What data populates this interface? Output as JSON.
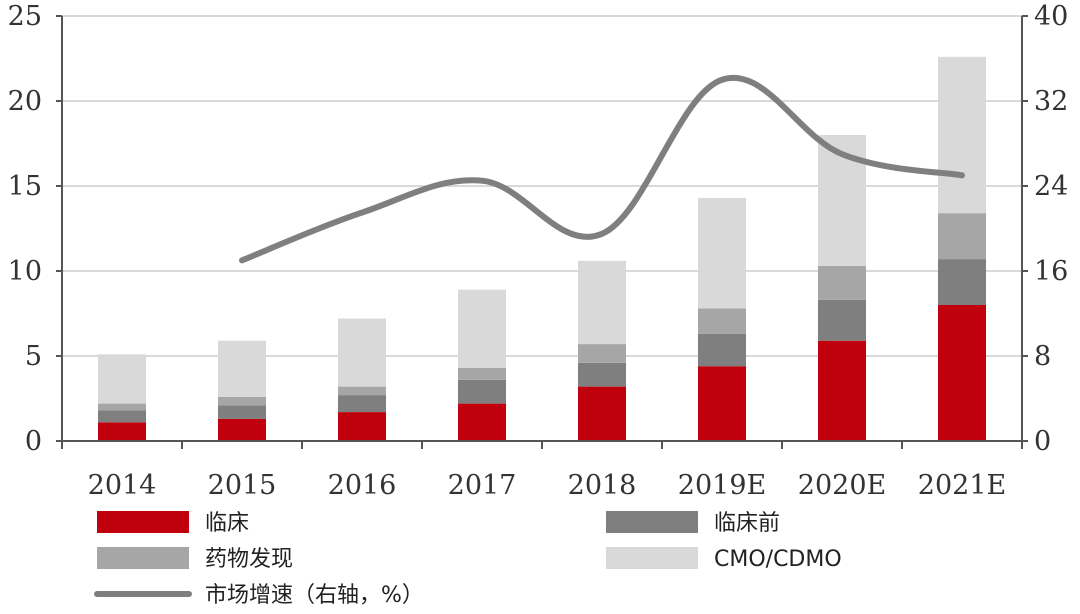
{
  "chart_data": {
    "type": "bar",
    "stacked": true,
    "categories": [
      "2014",
      "2015",
      "2016",
      "2017",
      "2018",
      "2019E",
      "2020E",
      "2021E"
    ],
    "series": [
      {
        "name": "临床",
        "type": "bar",
        "color": "#c0000c",
        "values": [
          1.1,
          1.3,
          1.7,
          2.2,
          3.2,
          4.4,
          5.9,
          8.0
        ]
      },
      {
        "name": "临床前",
        "type": "bar",
        "color": "#7f7f7f",
        "values": [
          0.7,
          0.8,
          1.0,
          1.4,
          1.4,
          1.9,
          2.4,
          2.7
        ]
      },
      {
        "name": "药物发现",
        "type": "bar",
        "color": "#a6a6a6",
        "values": [
          0.4,
          0.5,
          0.5,
          0.7,
          1.1,
          1.5,
          2.0,
          2.7
        ]
      },
      {
        "name": "CMO/CDMO",
        "type": "bar",
        "color": "#d9d9d9",
        "values": [
          2.9,
          3.3,
          4.0,
          4.6,
          4.9,
          6.5,
          7.7,
          9.2
        ]
      },
      {
        "name": "市场增速（右轴，%）",
        "type": "line",
        "axis": "right",
        "color": "#7f7f7f",
        "values": [
          null,
          17,
          21.5,
          24.5,
          19.5,
          34,
          27,
          25
        ]
      }
    ],
    "left_axis": {
      "min": 0,
      "max": 25,
      "ticks": [
        "0",
        "5",
        "10",
        "15",
        "20",
        "25"
      ]
    },
    "right_axis": {
      "min": 0,
      "max": 40,
      "ticks": [
        "0",
        "8",
        "16",
        "24",
        "32",
        "40"
      ]
    },
    "grid": true,
    "legend": [
      {
        "label": "临床",
        "kind": "bar",
        "color": "#c0000c"
      },
      {
        "label": "临床前",
        "kind": "bar",
        "color": "#7f7f7f"
      },
      {
        "label": "药物发现",
        "kind": "bar",
        "color": "#a6a6a6"
      },
      {
        "label": "CMO/CDMO",
        "kind": "bar",
        "color": "#d9d9d9"
      },
      {
        "label": "市场增速（右轴，%）",
        "kind": "line",
        "color": "#7f7f7f"
      }
    ]
  }
}
